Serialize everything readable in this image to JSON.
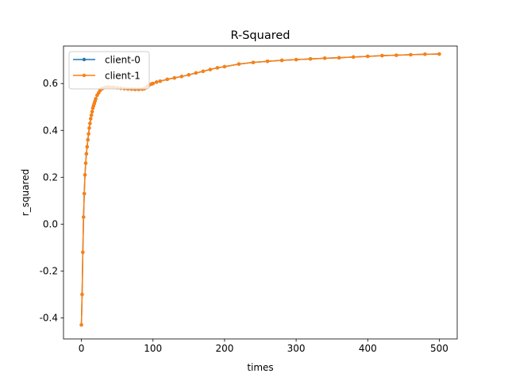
{
  "chart_data": {
    "type": "line",
    "title": "R-Squared",
    "xlabel": "times",
    "ylabel": "r_squared",
    "xlim": [
      -25,
      525
    ],
    "ylim": [
      -0.49,
      0.76
    ],
    "xticks": [
      0,
      100,
      200,
      300,
      400,
      500
    ],
    "xtick_labels": [
      "0",
      "100",
      "200",
      "300",
      "400",
      "500"
    ],
    "yticks": [
      -0.4,
      -0.2,
      0.0,
      0.2,
      0.4,
      0.6
    ],
    "ytick_labels": [
      "-0.4",
      "-0.2",
      "0.0",
      "0.2",
      "0.4",
      "0.6"
    ],
    "grid": false,
    "legend_position": "upper-left",
    "marker": "point",
    "series": [
      {
        "name": "client-0",
        "color": "#1f77b4",
        "x": [
          0,
          1,
          2,
          3,
          4,
          5,
          6,
          7,
          8,
          9,
          10,
          11,
          12,
          13,
          14,
          15,
          16,
          17,
          18,
          19,
          20,
          22,
          24,
          26,
          28,
          30,
          33,
          36,
          40,
          45,
          50,
          55,
          60,
          65,
          70,
          75,
          80,
          85,
          88,
          90,
          92,
          95,
          98,
          100,
          105,
          110,
          120,
          130,
          140,
          150,
          160,
          170,
          180,
          190,
          200,
          220,
          240,
          260,
          280,
          300,
          320,
          340,
          360,
          380,
          400,
          420,
          440,
          460,
          480,
          500
        ],
        "y": [
          -0.43,
          -0.3,
          -0.12,
          0.03,
          0.13,
          0.21,
          0.26,
          0.3,
          0.33,
          0.36,
          0.385,
          0.41,
          0.43,
          0.45,
          0.465,
          0.48,
          0.495,
          0.505,
          0.515,
          0.525,
          0.535,
          0.55,
          0.56,
          0.57,
          0.577,
          0.58,
          0.583,
          0.585,
          0.585,
          0.584,
          0.582,
          0.58,
          0.578,
          0.577,
          0.576,
          0.575,
          0.575,
          0.576,
          0.578,
          0.582,
          0.588,
          0.594,
          0.598,
          0.6,
          0.606,
          0.61,
          0.618,
          0.624,
          0.63,
          0.637,
          0.645,
          0.652,
          0.66,
          0.667,
          0.672,
          0.683,
          0.69,
          0.695,
          0.699,
          0.702,
          0.705,
          0.708,
          0.71,
          0.713,
          0.716,
          0.719,
          0.721,
          0.723,
          0.725,
          0.726
        ]
      },
      {
        "name": "client-1",
        "color": "#ff7f0e",
        "x": [
          0,
          1,
          2,
          3,
          4,
          5,
          6,
          7,
          8,
          9,
          10,
          11,
          12,
          13,
          14,
          15,
          16,
          17,
          18,
          19,
          20,
          22,
          24,
          26,
          28,
          30,
          33,
          36,
          40,
          45,
          50,
          55,
          60,
          65,
          70,
          75,
          80,
          85,
          88,
          90,
          92,
          95,
          98,
          100,
          105,
          110,
          120,
          130,
          140,
          150,
          160,
          170,
          180,
          190,
          200,
          220,
          240,
          260,
          280,
          300,
          320,
          340,
          360,
          380,
          400,
          420,
          440,
          460,
          480,
          500
        ],
        "y": [
          -0.43,
          -0.3,
          -0.12,
          0.03,
          0.13,
          0.21,
          0.26,
          0.3,
          0.33,
          0.36,
          0.385,
          0.41,
          0.43,
          0.45,
          0.465,
          0.48,
          0.495,
          0.505,
          0.515,
          0.525,
          0.535,
          0.55,
          0.56,
          0.57,
          0.577,
          0.58,
          0.583,
          0.585,
          0.585,
          0.584,
          0.582,
          0.58,
          0.578,
          0.577,
          0.576,
          0.575,
          0.575,
          0.576,
          0.578,
          0.582,
          0.588,
          0.594,
          0.598,
          0.6,
          0.606,
          0.61,
          0.618,
          0.624,
          0.63,
          0.637,
          0.645,
          0.652,
          0.66,
          0.667,
          0.672,
          0.683,
          0.69,
          0.695,
          0.699,
          0.702,
          0.705,
          0.708,
          0.71,
          0.713,
          0.716,
          0.719,
          0.721,
          0.723,
          0.725,
          0.726
        ]
      }
    ]
  }
}
